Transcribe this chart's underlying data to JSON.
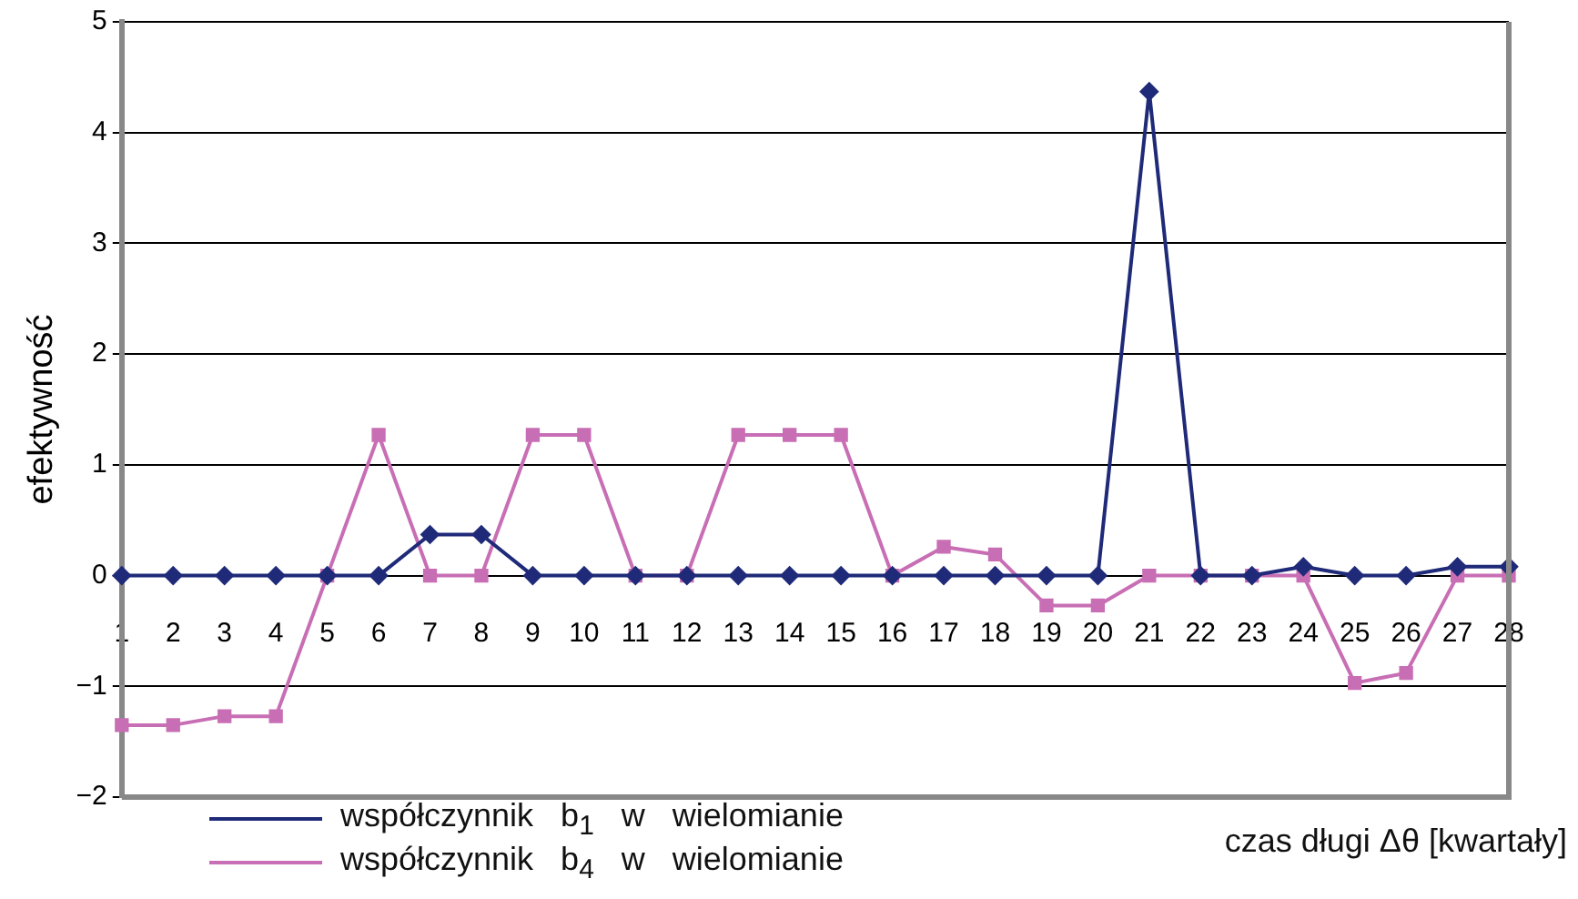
{
  "chart_data": {
    "type": "line",
    "ylabel": "efektywność",
    "xlabel": "czas długi Δθ [kwartały]",
    "categories": [
      "1",
      "2",
      "3",
      "4",
      "5",
      "6",
      "7",
      "8",
      "9",
      "10",
      "11",
      "12",
      "13",
      "14",
      "15",
      "16",
      "17",
      "18",
      "19",
      "20",
      "21",
      "22",
      "23",
      "24",
      "25",
      "26",
      "27",
      "28"
    ],
    "series": [
      {
        "name": "współczynnik   b$_{1}$   w   wielomianie",
        "color": "#1f2a78",
        "marker": "diamond",
        "values": [
          0,
          0,
          0,
          0,
          0,
          0,
          0.37,
          0.37,
          0,
          0,
          0,
          0,
          0,
          0,
          0,
          0,
          0,
          0,
          0,
          0,
          4.37,
          0,
          0,
          0.08,
          0,
          0,
          0.08,
          0.08
        ]
      },
      {
        "name": "współczynnik   b$_{4}$   w   wielomianie",
        "color": "#c86eb4",
        "marker": "square",
        "values": [
          -1.35,
          -1.35,
          -1.27,
          -1.27,
          0,
          1.27,
          0,
          0,
          1.27,
          1.27,
          0,
          0,
          1.27,
          1.27,
          1.27,
          0,
          0.26,
          0.19,
          -0.27,
          -0.27,
          0,
          0,
          0,
          0,
          -0.97,
          -0.88,
          0,
          0
        ]
      }
    ],
    "ylim": [
      -2,
      5
    ],
    "yticks": [
      {
        "value": -2,
        "label": "−2"
      },
      {
        "value": -1,
        "label": "−1"
      },
      0,
      1,
      2,
      3,
      4,
      5
    ],
    "grid": "y",
    "legend": "bottom left"
  }
}
